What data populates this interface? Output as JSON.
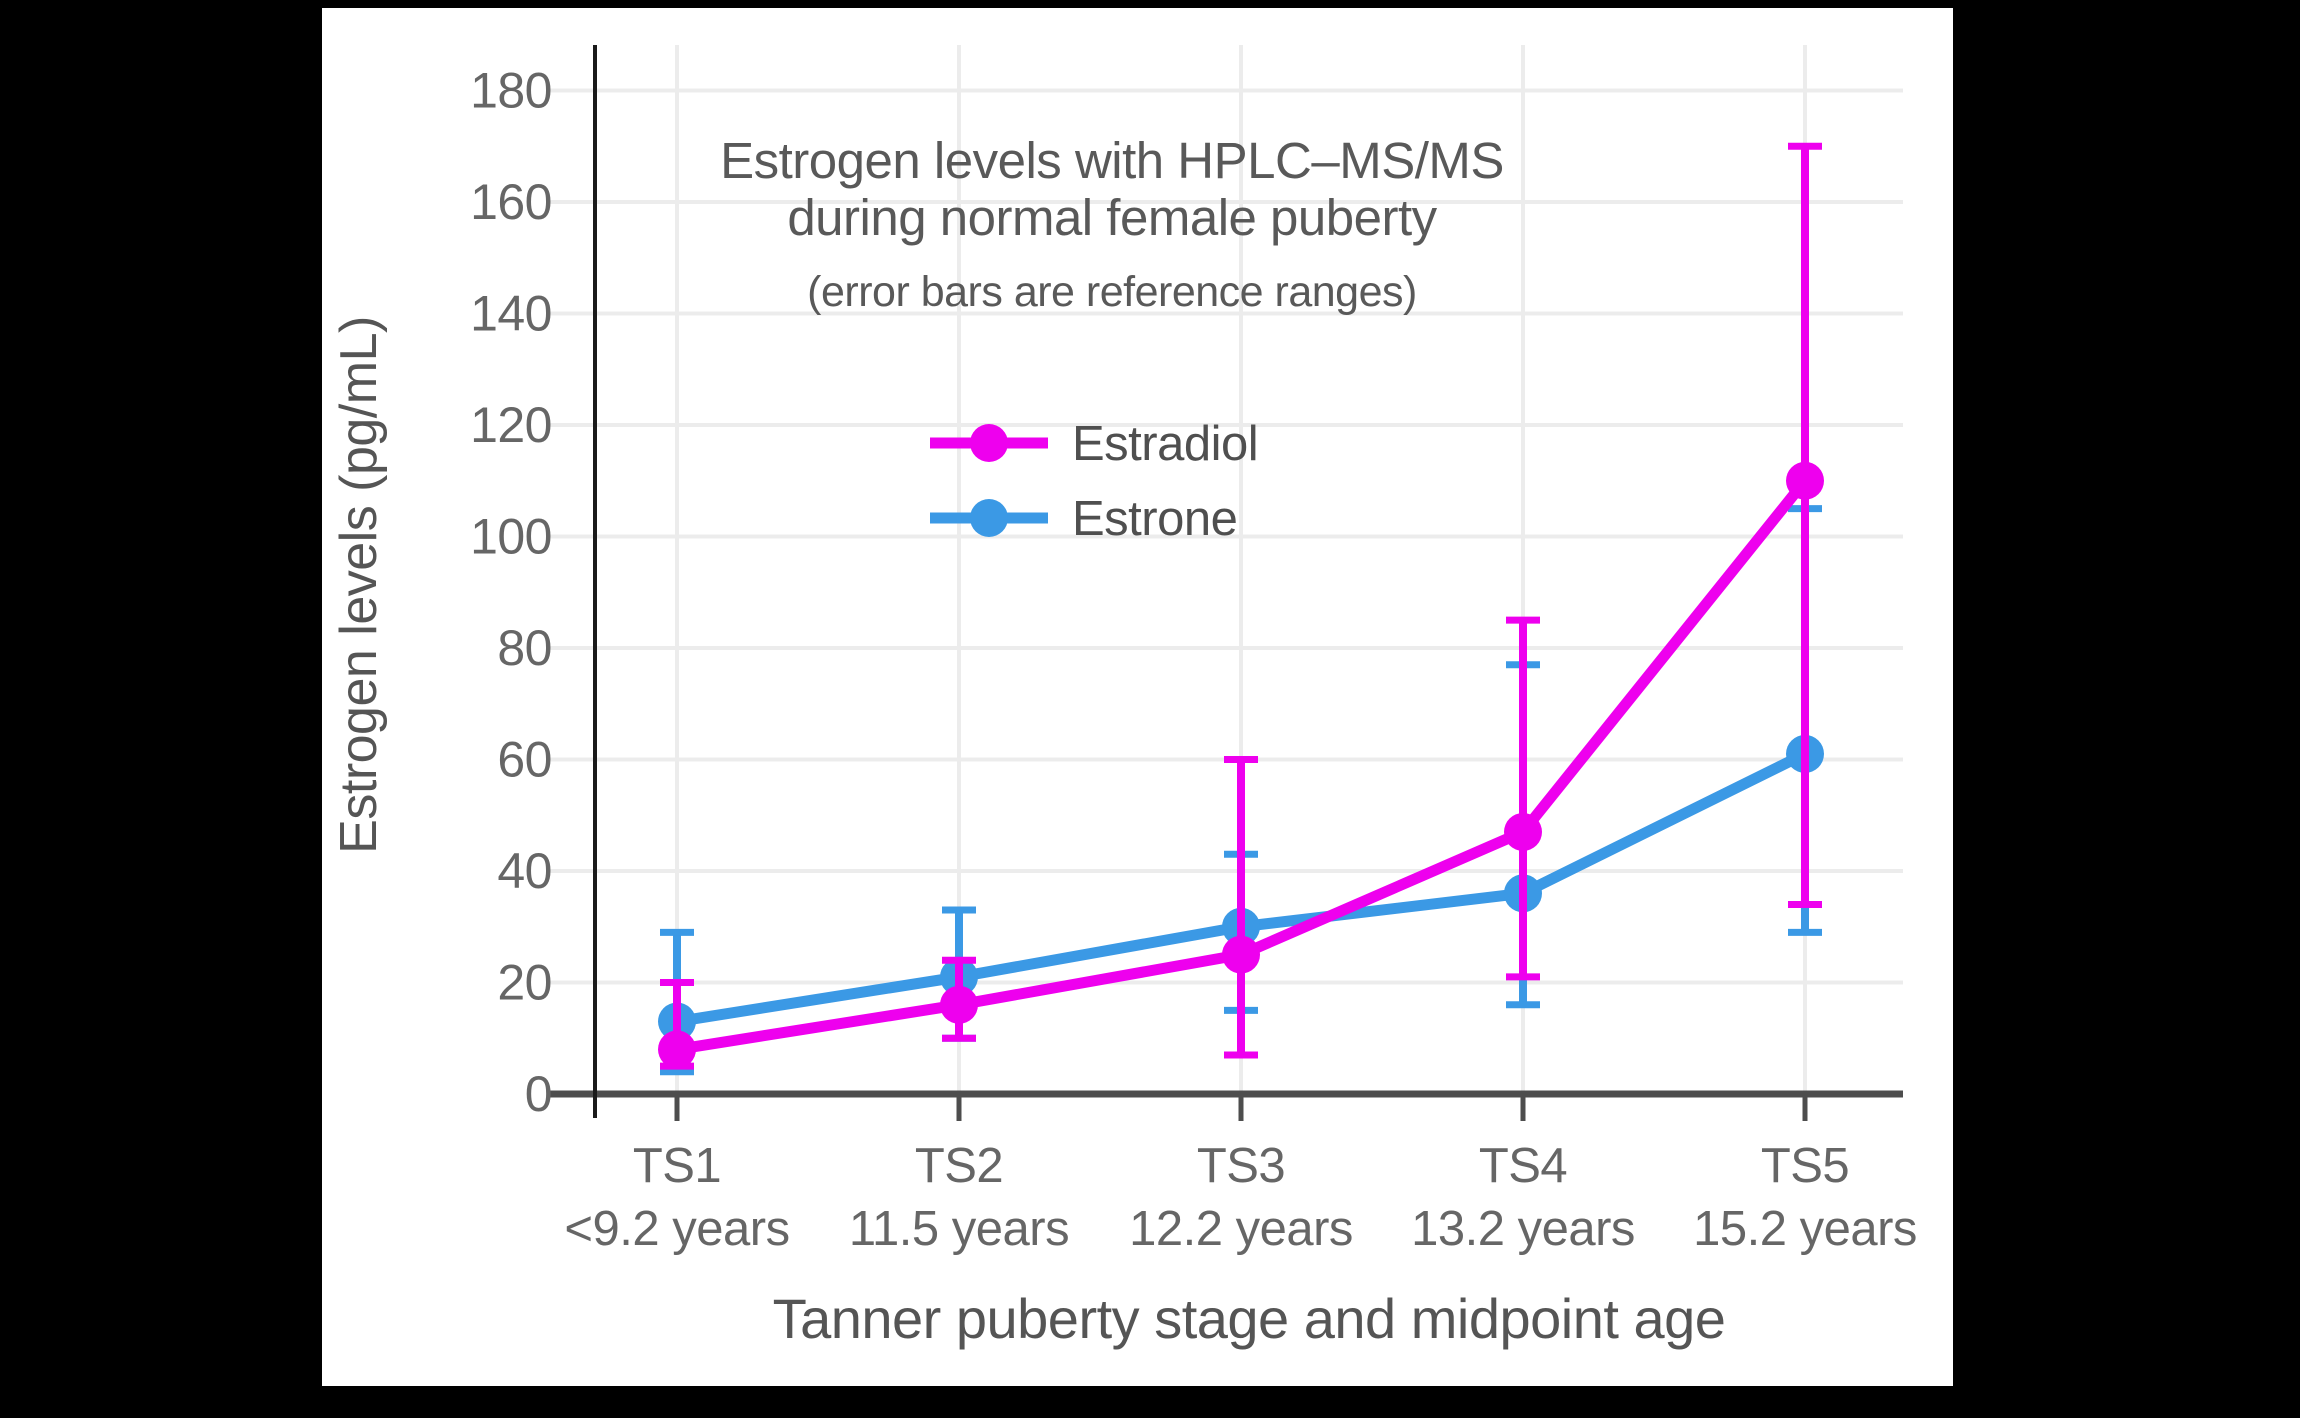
{
  "frame": {
    "background_color": "#000000",
    "card_color": "#ffffff"
  },
  "style": {
    "title_color": "#595959",
    "tick_label_color": "#666666",
    "axis_label_color": "#555555",
    "grid_color": "#ececec",
    "x_axis_color": "#4d4d4d",
    "y_axis_color": "#1a1a1a"
  },
  "chart_data": {
    "type": "line",
    "title_line1": "Estrogen levels with HPLC–MS/MS",
    "title_line2": "during normal female puberty",
    "subtitle": "(error bars are reference ranges)",
    "xlabel": "Tanner puberty stage and midpoint age",
    "ylabel": "Estrogen levels (pg/mL)",
    "categories": [
      "TS1",
      "TS2",
      "TS3",
      "TS4",
      "TS5"
    ],
    "category_sublabels": [
      "<9.2 years",
      "11.5 years",
      "12.2 years",
      "13.2 years",
      "15.2 years"
    ],
    "ylim": [
      0,
      180
    ],
    "yticks": [
      0,
      20,
      40,
      60,
      80,
      100,
      120,
      140,
      160,
      180
    ],
    "grid": true,
    "error_bar_meaning": "reference ranges",
    "legend_position": "upper left area inside plot",
    "series": [
      {
        "name": "Estradiol",
        "color": "#ee00ee",
        "values": [
          8,
          16,
          25,
          47,
          110
        ],
        "range_low": [
          5,
          10,
          7,
          21,
          34
        ],
        "range_high": [
          20,
          24,
          60,
          85,
          170
        ]
      },
      {
        "name": "Estrone",
        "color": "#3b99e5",
        "values": [
          13,
          21,
          30,
          36,
          61
        ],
        "range_low": [
          4,
          10,
          15,
          16,
          29
        ],
        "range_high": [
          29,
          33,
          43,
          77,
          105
        ]
      }
    ]
  }
}
